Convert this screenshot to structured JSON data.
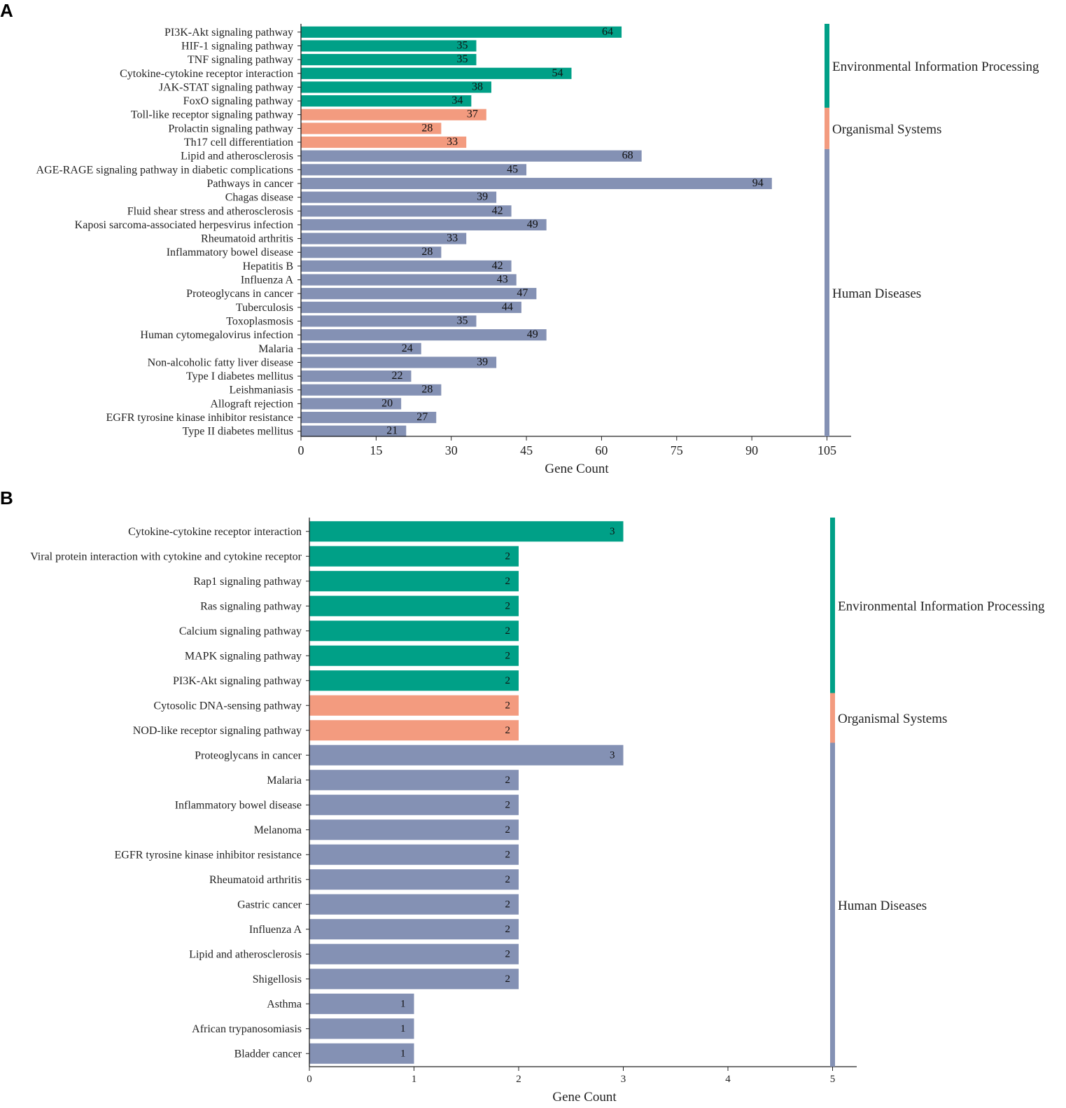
{
  "colors": {
    "Environmental Information Processing": "#00a087",
    "Organismal Systems": "#f39b7f",
    "Human Diseases": "#8491b4"
  },
  "chart_data": [
    {
      "panel": "A",
      "type": "bar",
      "orientation": "horizontal",
      "xlabel": "Gene Count",
      "xlim": [
        0,
        105
      ],
      "xticks": [
        0,
        15,
        30,
        45,
        60,
        75,
        90,
        105
      ],
      "categories": [
        "PI3K-Akt signaling pathway",
        "HIF-1 signaling pathway",
        "TNF signaling pathway",
        "Cytokine-cytokine receptor interaction",
        "JAK-STAT signaling pathway",
        "FoxO signaling pathway",
        "Toll-like receptor signaling pathway",
        "Prolactin signaling pathway",
        "Th17 cell differentiation",
        "Lipid and atherosclerosis",
        "AGE-RAGE signaling pathway in diabetic complications",
        "Pathways in cancer",
        "Chagas disease",
        "Fluid shear stress and atherosclerosis",
        "Kaposi sarcoma-associated herpesvirus infection",
        "Rheumatoid arthritis",
        "Inflammatory bowel disease",
        "Hepatitis B",
        "Influenza A",
        "Proteoglycans in cancer",
        "Tuberculosis",
        "Toxoplasmosis",
        "Human cytomegalovirus infection",
        "Malaria",
        "Non-alcoholic fatty liver disease",
        "Type I diabetes mellitus",
        "Leishmaniasis",
        "Allograft rejection",
        "EGFR tyrosine kinase inhibitor resistance",
        "Type II diabetes mellitus"
      ],
      "values": [
        64,
        35,
        35,
        54,
        38,
        34,
        37,
        28,
        33,
        68,
        45,
        94,
        39,
        42,
        49,
        33,
        28,
        42,
        43,
        47,
        44,
        35,
        49,
        24,
        39,
        22,
        28,
        20,
        27,
        21
      ],
      "groups": [
        {
          "name": "Environmental Information Processing",
          "count": 6
        },
        {
          "name": "Organismal Systems",
          "count": 3
        },
        {
          "name": "Human Diseases",
          "count": 21
        }
      ]
    },
    {
      "panel": "B",
      "type": "bar",
      "orientation": "horizontal",
      "xlabel": "Gene Count",
      "xlim": [
        0,
        5
      ],
      "xticks": [
        0,
        1,
        2,
        3,
        4,
        5
      ],
      "categories": [
        "Cytokine-cytokine receptor interaction",
        "Viral protein interaction with cytokine and cytokine receptor",
        "Rap1 signaling pathway",
        "Ras signaling pathway",
        "Calcium signaling pathway",
        "MAPK signaling pathway",
        "PI3K-Akt signaling pathway",
        "Cytosolic DNA-sensing pathway",
        "NOD-like receptor signaling pathway",
        "Proteoglycans in cancer",
        "Malaria",
        "Inflammatory bowel disease",
        "Melanoma",
        "EGFR tyrosine kinase inhibitor resistance",
        "Rheumatoid arthritis",
        "Gastric cancer",
        "Influenza A",
        "Lipid and atherosclerosis",
        "Shigellosis",
        "Asthma",
        "African trypanosomiasis",
        "Bladder cancer"
      ],
      "values": [
        3,
        2,
        2,
        2,
        2,
        2,
        2,
        2,
        2,
        3,
        2,
        2,
        2,
        2,
        2,
        2,
        2,
        2,
        2,
        1,
        1,
        1
      ],
      "groups": [
        {
          "name": "Environmental Information Processing",
          "count": 7
        },
        {
          "name": "Organismal Systems",
          "count": 2
        },
        {
          "name": "Human Diseases",
          "count": 13
        }
      ]
    }
  ]
}
